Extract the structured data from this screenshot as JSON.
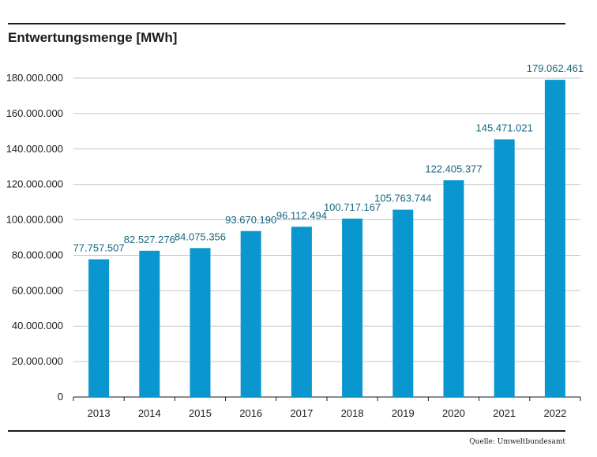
{
  "chart_data": {
    "type": "bar",
    "title": "Entwertungsmenge [MWh]",
    "categories": [
      "2013",
      "2014",
      "2015",
      "2016",
      "2017",
      "2018",
      "2019",
      "2020",
      "2021",
      "2022"
    ],
    "values": [
      77757507,
      82527276,
      84075356,
      93670190,
      96112494,
      100717167,
      105763744,
      122405377,
      145471021,
      179062461
    ],
    "data_labels": [
      "77.757.507",
      "82.527.276",
      "84.075.356",
      "93.670.190",
      "96.112.494",
      "100.717.167",
      "105.763.744",
      "122.405.377",
      "145.471.021",
      "179.062.461"
    ],
    "y_ticks": [
      0,
      20000000,
      40000000,
      60000000,
      80000000,
      100000000,
      120000000,
      140000000,
      160000000,
      180000000
    ],
    "y_tick_labels": [
      "0",
      "20.000.000",
      "40.000.000",
      "60.000.000",
      "80.000.000",
      "100.000.000",
      "120.000.000",
      "140.000.000",
      "160.000.000",
      "180.000.000"
    ],
    "ylim": [
      0,
      180000000
    ],
    "grid": true,
    "legend": "none"
  },
  "colors": {
    "bar": "#0a96cf",
    "data_label": "#17667f",
    "grid": "#c8c8c8",
    "axis": "#1a1a1a"
  },
  "source": "Quelle: Umweltbundesamt"
}
